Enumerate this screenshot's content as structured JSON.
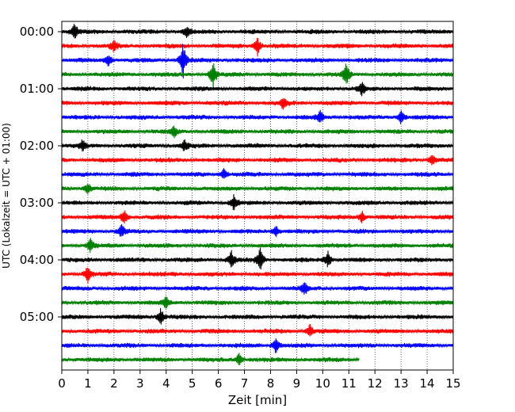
{
  "chart_data": {
    "type": "line",
    "title": "",
    "xlabel": "Zeit  [min]",
    "ylabel": "UTC (Lokalzeit = UTC + 01:00)",
    "xlim": [
      0,
      15
    ],
    "x_ticks": [
      "0",
      "1",
      "2",
      "3",
      "4",
      "5",
      "6",
      "7",
      "8",
      "9",
      "10",
      "11",
      "12",
      "13",
      "14",
      "15"
    ],
    "y_tick_labels": [
      "00:00",
      "01:00",
      "02:00",
      "03:00",
      "04:00",
      "05:00"
    ],
    "row_interval_minutes": 15,
    "row_count": 24,
    "color_cycle": [
      "#000000",
      "#ff0000",
      "#0000ff",
      "#008000"
    ],
    "vertical_grid": "dotted",
    "last_row_end_minute": 11.4,
    "events": [
      {
        "row": 0,
        "minute": 0.5,
        "amplitude": 1.3
      },
      {
        "row": 0,
        "minute": 4.8,
        "amplitude": 0.9
      },
      {
        "row": 1,
        "minute": 7.5,
        "amplitude": 1.4
      },
      {
        "row": 1,
        "minute": 2.0,
        "amplitude": 0.8
      },
      {
        "row": 2,
        "minute": 4.65,
        "amplitude": 2.6
      },
      {
        "row": 2,
        "minute": 1.8,
        "amplitude": 1.0
      },
      {
        "row": 3,
        "minute": 5.8,
        "amplitude": 1.9
      },
      {
        "row": 3,
        "minute": 10.9,
        "amplitude": 1.6
      },
      {
        "row": 4,
        "minute": 11.5,
        "amplitude": 1.0
      },
      {
        "row": 5,
        "minute": 8.5,
        "amplitude": 0.9
      },
      {
        "row": 6,
        "minute": 9.9,
        "amplitude": 0.9
      },
      {
        "row": 6,
        "minute": 13.0,
        "amplitude": 1.0
      },
      {
        "row": 7,
        "minute": 4.3,
        "amplitude": 0.8
      },
      {
        "row": 8,
        "minute": 0.8,
        "amplitude": 0.8
      },
      {
        "row": 8,
        "minute": 4.7,
        "amplitude": 0.8
      },
      {
        "row": 9,
        "minute": 14.2,
        "amplitude": 0.8
      },
      {
        "row": 10,
        "minute": 6.2,
        "amplitude": 0.9
      },
      {
        "row": 11,
        "minute": 1.0,
        "amplitude": 0.8
      },
      {
        "row": 12,
        "minute": 6.6,
        "amplitude": 1.2
      },
      {
        "row": 13,
        "minute": 2.4,
        "amplitude": 1.1
      },
      {
        "row": 13,
        "minute": 11.5,
        "amplitude": 0.9
      },
      {
        "row": 14,
        "minute": 2.3,
        "amplitude": 1.0
      },
      {
        "row": 14,
        "minute": 8.2,
        "amplitude": 1.0
      },
      {
        "row": 15,
        "minute": 1.1,
        "amplitude": 1.0
      },
      {
        "row": 16,
        "minute": 6.5,
        "amplitude": 1.3
      },
      {
        "row": 16,
        "minute": 7.6,
        "amplitude": 1.9
      },
      {
        "row": 16,
        "minute": 10.2,
        "amplitude": 1.2
      },
      {
        "row": 17,
        "minute": 1.0,
        "amplitude": 1.3
      },
      {
        "row": 18,
        "minute": 9.3,
        "amplitude": 1.0
      },
      {
        "row": 19,
        "minute": 4.0,
        "amplitude": 1.0
      },
      {
        "row": 20,
        "minute": 3.8,
        "amplitude": 1.3
      },
      {
        "row": 21,
        "minute": 9.5,
        "amplitude": 1.0
      },
      {
        "row": 22,
        "minute": 8.2,
        "amplitude": 1.3
      },
      {
        "row": 23,
        "minute": 6.8,
        "amplitude": 1.0
      }
    ]
  }
}
